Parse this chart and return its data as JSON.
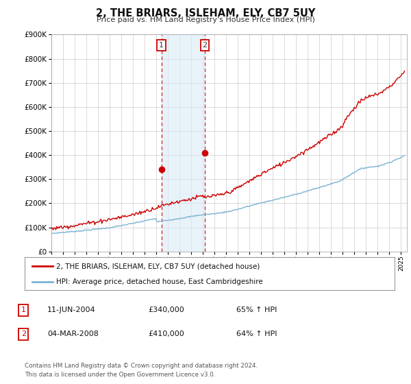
{
  "title": "2, THE BRIARS, ISLEHAM, ELY, CB7 5UY",
  "subtitle": "Price paid vs. HM Land Registry's House Price Index (HPI)",
  "ylim": [
    0,
    900000
  ],
  "xlim_start": 1995.0,
  "xlim_end": 2025.5,
  "hpi_color": "#7ab3d4",
  "price_color": "#cc0000",
  "sale1_date": 2004.44,
  "sale1_price": 340000,
  "sale2_date": 2008.17,
  "sale2_price": 410000,
  "legend_line1": "2, THE BRIARS, ISLEHAM, ELY, CB7 5UY (detached house)",
  "legend_line2": "HPI: Average price, detached house, East Cambridgeshire",
  "table_row1": [
    "1",
    "11-JUN-2004",
    "£340,000",
    "65% ↑ HPI"
  ],
  "table_row2": [
    "2",
    "04-MAR-2008",
    "£410,000",
    "64% ↑ HPI"
  ],
  "footnote": "Contains HM Land Registry data © Crown copyright and database right 2024.\nThis data is licensed under the Open Government Licence v3.0.",
  "background_color": "#ffffff",
  "grid_color": "#cccccc",
  "shade_color": "#daeaf5"
}
